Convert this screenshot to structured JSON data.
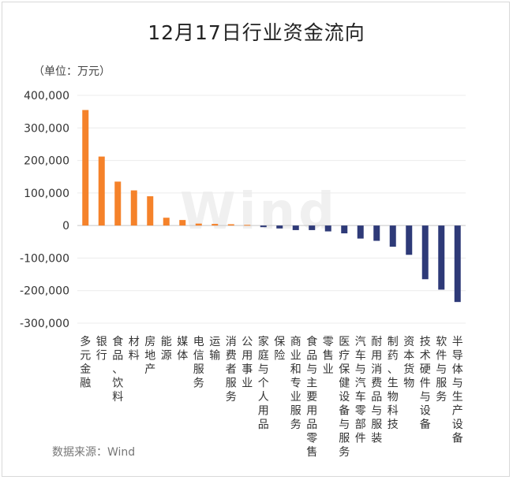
{
  "chart_data": {
    "type": "bar",
    "title": "12月17日行业资金流向",
    "unit_label": "（单位：万元）",
    "source": "数据来源：Wind",
    "watermark": "Wind",
    "ylim": [
      -300000,
      400000
    ],
    "yticks": [
      400000,
      300000,
      200000,
      100000,
      0,
      -100000,
      -200000,
      -300000
    ],
    "ytick_labels": [
      "400,000",
      "300,000",
      "200,000",
      "100,000",
      "0",
      "-100,000",
      "-200,000",
      "-300,000"
    ],
    "grid": true,
    "colors": {
      "positive": "#f5822a",
      "negative": "#2e3a78"
    },
    "categories": [
      "多元金融",
      "银行",
      "食品、饮料",
      "材料",
      "房地产",
      "能源",
      "媒体",
      "电信服务",
      "运输",
      "消费者服务",
      "公用事业",
      "家庭与个人用品",
      "保险",
      "商业和专业服务",
      "食品与主要用品零售",
      "零售业",
      "医疗保健设备与服务",
      "汽车与汽车零部件",
      "耐用消费品与服装",
      "制药、生物科技",
      "资本货物",
      "技术硬件与设备",
      "软件与服务",
      "半导体与生产设备"
    ],
    "values": [
      355000,
      212000,
      135000,
      108000,
      90000,
      24000,
      17000,
      6000,
      5000,
      4000,
      2000,
      -5000,
      -9000,
      -14000,
      -14000,
      -18000,
      -24000,
      -40000,
      -47000,
      -65000,
      -90000,
      -165000,
      -197000,
      -235000
    ]
  }
}
